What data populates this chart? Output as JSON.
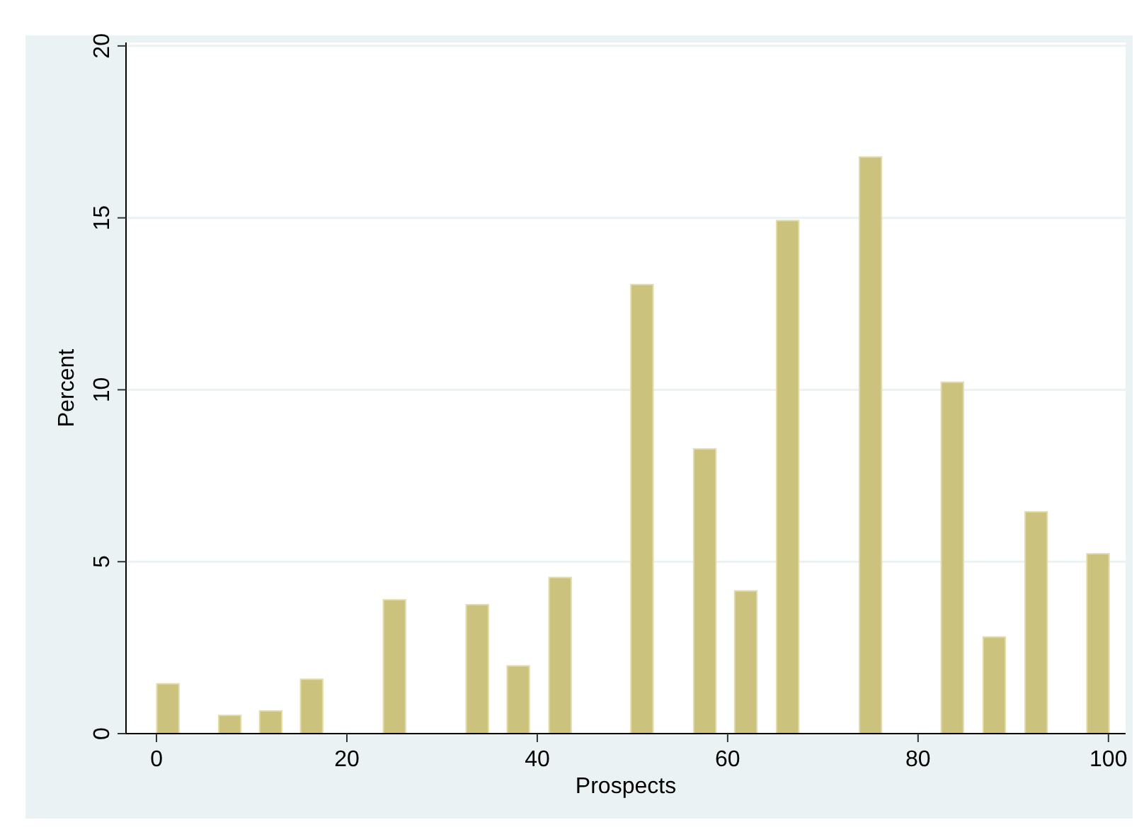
{
  "chart_data": {
    "type": "bar",
    "xlabel": "Prospects",
    "ylabel": "Percent",
    "x": [
      1.2,
      7.7,
      12,
      16.3,
      25,
      33.7,
      38,
      42.4,
      51,
      57.6,
      61.9,
      66.3,
      75,
      83.6,
      88,
      92.4,
      98.9
    ],
    "values": [
      1.45,
      0.53,
      0.66,
      1.58,
      3.89,
      3.75,
      1.97,
      4.54,
      13.06,
      8.28,
      4.15,
      14.92,
      16.77,
      10.22,
      2.81,
      6.45,
      5.23
    ],
    "color": "#cbc27d",
    "xlim": [
      -3.2,
      101.8
    ],
    "xticks": [
      0,
      20,
      40,
      60,
      80,
      100
    ],
    "ylim": [
      0,
      20.1
    ],
    "yticks": [
      0,
      5,
      10,
      15,
      20
    ],
    "grid": "y"
  }
}
